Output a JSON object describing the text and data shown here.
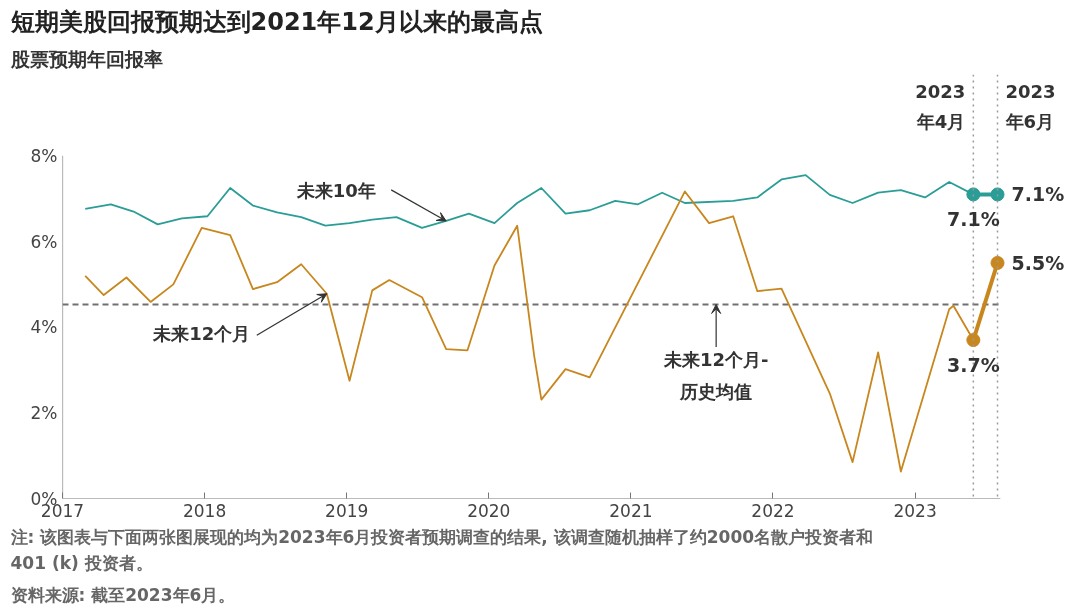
{
  "chart_data": {
    "type": "line",
    "title": "短期美股回报预期达到2021年12月以来的最高点",
    "ylabel": "股票预期年回报率",
    "xlim": [
      2017,
      2023.6
    ],
    "xticks": [
      2017,
      2018,
      2019,
      2020,
      2021,
      2022,
      2023
    ],
    "ylim": [
      0,
      8
    ],
    "yticks": [
      {
        "value": 0,
        "label": "0%"
      },
      {
        "value": 2,
        "label": "2%"
      },
      {
        "value": 4,
        "label": "4%"
      },
      {
        "value": 6,
        "label": "6%"
      },
      {
        "value": 8,
        "label": "8%"
      }
    ],
    "grid": false,
    "line_style": "solid",
    "series": [
      {
        "name": "未来10年",
        "color": "#2a9d96",
        "x": [
          2017.16,
          2017.34,
          2017.5,
          2017.67,
          2017.84,
          2018.02,
          2018.18,
          2018.34,
          2018.51,
          2018.68,
          2018.85,
          2019.02,
          2019.18,
          2019.35,
          2019.53,
          2019.7,
          2019.86,
          2020.04,
          2020.2,
          2020.37,
          2020.54,
          2020.71,
          2020.89,
          2021.05,
          2021.22,
          2021.38,
          2021.72,
          2021.89,
          2022.06,
          2022.23,
          2022.4,
          2022.56,
          2022.74,
          2022.9,
          2023.07,
          2023.24,
          2023.41
        ],
        "values": [
          6.76,
          6.87,
          6.7,
          6.4,
          6.54,
          6.59,
          7.25,
          6.84,
          6.68,
          6.57,
          6.37,
          6.43,
          6.51,
          6.57,
          6.32,
          6.48,
          6.65,
          6.43,
          6.9,
          7.25,
          6.65,
          6.73,
          6.95,
          6.87,
          7.14,
          6.9,
          6.95,
          7.03,
          7.45,
          7.55,
          7.09,
          6.9,
          7.14,
          7.2,
          7.03,
          7.39,
          7.1
        ]
      },
      {
        "name": "未来12个月",
        "color": "#c8871e",
        "x": [
          2017.16,
          2017.29,
          2017.45,
          2017.62,
          2017.78,
          2017.98,
          2018.18,
          2018.34,
          2018.51,
          2018.68,
          2018.86,
          2019.02,
          2019.18,
          2019.3,
          2019.53,
          2019.7,
          2019.85,
          2020.04,
          2020.2,
          2020.32,
          2020.37,
          2020.54,
          2020.71,
          2021.38,
          2021.55,
          2021.72,
          2021.89,
          2022.06,
          2022.4,
          2022.56,
          2022.74,
          2022.9,
          2023.24,
          2023.27,
          2023.41
        ],
        "values": [
          5.2,
          4.75,
          5.16,
          4.59,
          5.0,
          6.32,
          6.15,
          4.89,
          5.05,
          5.47,
          4.78,
          2.75,
          4.86,
          5.1,
          4.7,
          3.49,
          3.46,
          5.44,
          6.37,
          3.32,
          2.31,
          3.02,
          2.83,
          7.17,
          6.43,
          6.59,
          4.84,
          4.9,
          2.45,
          0.85,
          3.41,
          0.63,
          4.42,
          4.5,
          3.7
        ]
      },
      {
        "color": "#2a9d96",
        "marker": "circle",
        "x": [
          2023.41,
          2023.58
        ],
        "values": [
          7.1,
          7.1
        ],
        "value_labels": [
          "7.1%",
          "7.1%"
        ]
      },
      {
        "color": "#c8871e",
        "marker": "circle",
        "x": [
          2023.41,
          2023.58
        ],
        "values": [
          3.7,
          5.5
        ],
        "value_labels": [
          "3.7%",
          "5.5%"
        ]
      }
    ],
    "ref_lines": [
      {
        "axis": "y",
        "value": 4.53,
        "color": "#707070",
        "line_style": "dashed"
      },
      {
        "axis": "x",
        "value": 2023.41,
        "label": "2023\n年4月",
        "color": "#9a9a9a",
        "line_style": "dotted"
      },
      {
        "axis": "x",
        "value": 2023.58,
        "label": "2023\n年6月",
        "color": "#9a9a9a",
        "line_style": "dotted"
      }
    ],
    "annotations": [
      {
        "text": "未来12个月-\n历史均值",
        "x": 2021.6,
        "y": 4.53
      },
      "注: 该图表与下面两张图展现的均为2023年6月投资者预期调查的结果, 该调查随机抽样了约2000名散户投资者和401 (k) 投资者。",
      "资料来源: 截至2023年6月。"
    ]
  }
}
